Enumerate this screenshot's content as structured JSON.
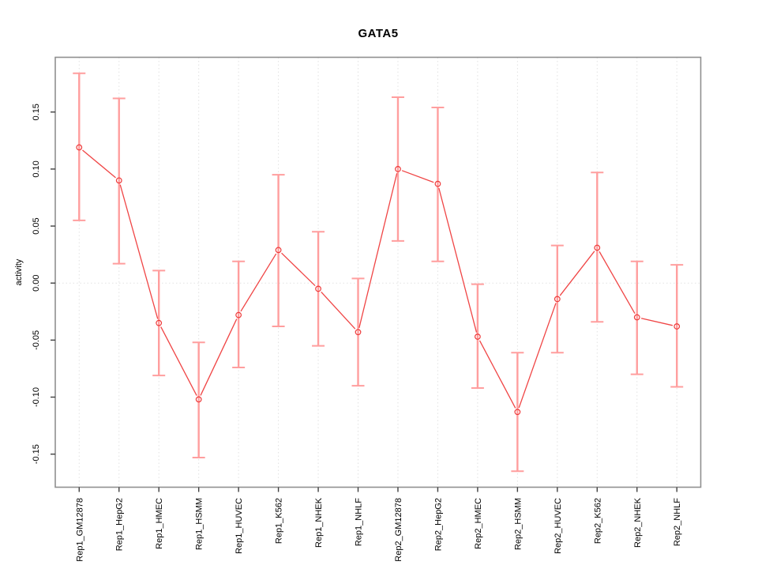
{
  "chart_data": {
    "type": "line",
    "title": "GATA5",
    "xlabel": "",
    "ylabel": "activity",
    "legend": "none",
    "grid": "vertical dotted gridline at each category; horizontal dotted gridline at y=0",
    "marker": "open-circle",
    "categories": [
      "Rep1_GM12878",
      "Rep1_HepG2",
      "Rep1_HMEC",
      "Rep1_HSMM",
      "Rep1_HUVEC",
      "Rep1_K562",
      "Rep1_NHEK",
      "Rep1_NHLF",
      "Rep2_GM12878",
      "Rep2_HepG2",
      "Rep2_HMEC",
      "Rep2_HSMM",
      "Rep2_HUVEC",
      "Rep2_K562",
      "Rep2_NHEK",
      "Rep2_NHLF"
    ],
    "series": [
      {
        "name": "activity",
        "values": [
          0.119,
          0.09,
          -0.035,
          -0.102,
          -0.028,
          0.029,
          -0.005,
          -0.043,
          0.1,
          0.087,
          -0.047,
          -0.113,
          -0.014,
          0.031,
          -0.03,
          -0.038
        ],
        "error_low": [
          0.055,
          0.017,
          -0.081,
          -0.153,
          -0.074,
          -0.038,
          -0.055,
          -0.09,
          0.037,
          0.019,
          -0.092,
          -0.165,
          -0.061,
          -0.034,
          -0.08,
          -0.091
        ],
        "error_high": [
          0.184,
          0.162,
          0.011,
          -0.052,
          0.019,
          0.095,
          0.045,
          0.004,
          0.163,
          0.154,
          -0.001,
          -0.061,
          0.033,
          0.097,
          0.019,
          0.016
        ]
      }
    ],
    "ylim": [
      -0.179,
      0.198
    ],
    "xlim": [
      0.4,
      16.6
    ],
    "yticks": [
      -0.15,
      -0.1,
      -0.05,
      0.0,
      0.05,
      0.1,
      0.15
    ],
    "ytick_labels": [
      "-0.15",
      "-0.10",
      "-0.05",
      "0.00",
      "0.05",
      "0.10",
      "0.15"
    ],
    "colors": {
      "series_line": "#f04545",
      "marker": "#ee3a3a",
      "error_bar": "#ff9e9e",
      "grid": "#e2e2e2",
      "frame": "#8f8f8f",
      "tick": "#404040",
      "text": "#000000",
      "background": "#ffffff"
    }
  }
}
